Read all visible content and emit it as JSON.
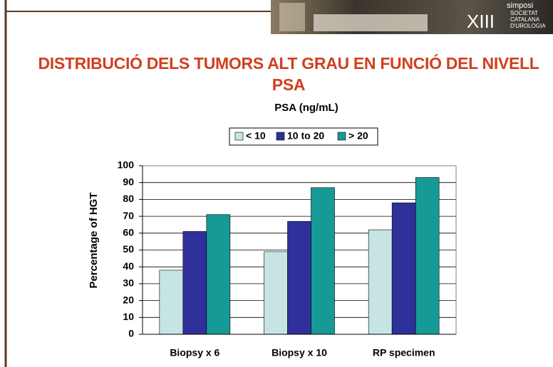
{
  "banner": {
    "numeral": "XIII",
    "lines": [
      "simposi",
      "SOCIETAT",
      "CATALANA",
      "D'UROLOGIA"
    ]
  },
  "chart_data": {
    "type": "bar",
    "title": "DISTRIBUCIÓ DELS TUMORS ALT GRAU EN FUNCIÓ DEL NIVELL PSA",
    "subtitle": "PSA (ng/mL)",
    "y_label": "Percentage of HGT",
    "categories": [
      "Biopsy x 6",
      "Biopsy x 10",
      "RP specimen"
    ],
    "series": [
      {
        "name": "< 10",
        "color": "#c6e4e4",
        "values": [
          38,
          49,
          62
        ]
      },
      {
        "name": "10 to 20",
        "color": "#30309a",
        "values": [
          61,
          67,
          78
        ]
      },
      {
        "name": "> 20",
        "color": "#169a98",
        "values": [
          71,
          87,
          93
        ]
      }
    ],
    "ylim": [
      0,
      100
    ],
    "yticks": [
      0,
      10,
      20,
      30,
      40,
      50,
      60,
      70,
      80,
      90,
      100
    ],
    "grid": true,
    "legend": "top"
  }
}
